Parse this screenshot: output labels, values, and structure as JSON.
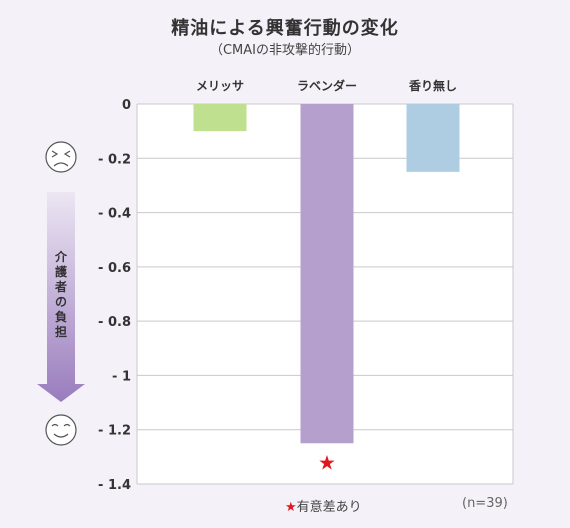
{
  "title": "精油による興奮行動の変化",
  "subtitle": "（CMAIの非攻撃的行動）",
  "chart_data": {
    "type": "bar",
    "categories": [
      "メリッサ",
      "ラベンダー",
      "香り無し"
    ],
    "values": [
      -0.1,
      -1.25,
      -0.25
    ],
    "colors": [
      "#bfe08e",
      "#b49fcd",
      "#afcde2"
    ],
    "ylim": [
      -1.4,
      0
    ],
    "yticks": [
      "0",
      "- 0.2",
      "- 0.4",
      "- 0.6",
      "- 0.8",
      "- 1",
      "- 1.2",
      "- 1.4"
    ],
    "ytick_values": [
      0,
      -0.2,
      -0.4,
      -0.6,
      -0.8,
      -1,
      -1.2,
      -1.4
    ],
    "significance_marker": "★",
    "significant_category": "ラベンダー",
    "grid": true
  },
  "burden_label": [
    "介",
    "護",
    "者",
    "の",
    "負",
    "担"
  ],
  "face_top": "sad-face-icon",
  "face_bottom": "smile-face-icon",
  "note_star": "★",
  "note_text": "有意差あり",
  "sample_size": "(n=39)"
}
